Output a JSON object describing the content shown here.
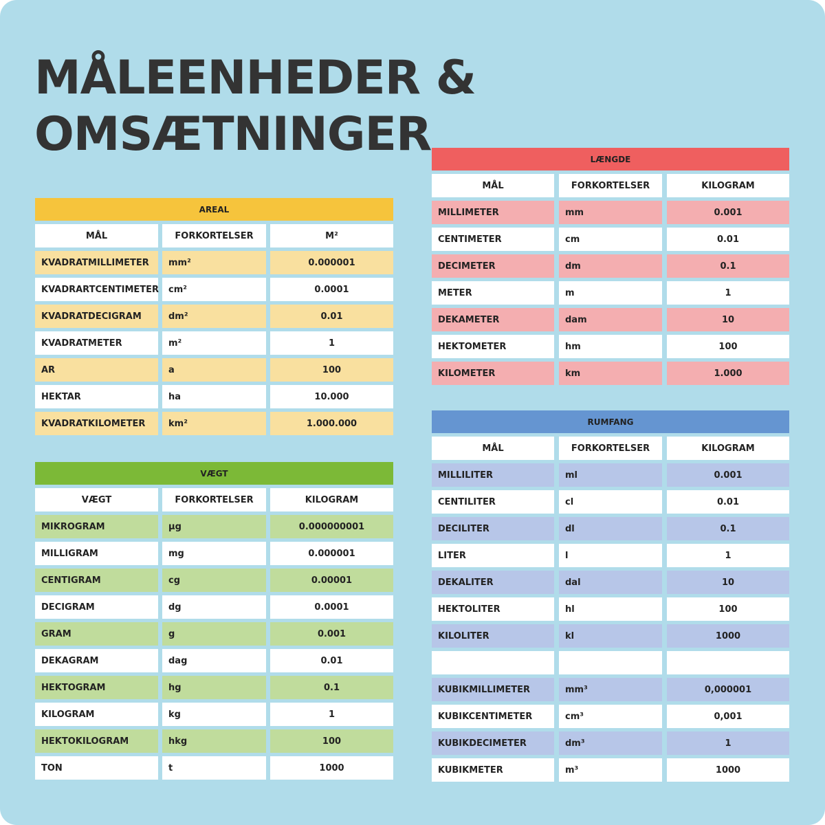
{
  "title_lines": [
    "MÅLEENHEDER &",
    "OMSÆTNINGER"
  ],
  "areal": {
    "title": "AREAL",
    "headers": [
      "MÅL",
      "FORKORTELSER",
      "M²"
    ],
    "rows": [
      [
        "KVADRATMILLIMETER",
        "mm²",
        "0.000001"
      ],
      [
        "KVADRARTCENTIMETER",
        "cm²",
        "0.0001"
      ],
      [
        "KVADRATDECIGRAM",
        "dm²",
        "0.01"
      ],
      [
        "KVADRATMETER",
        "m²",
        "1"
      ],
      [
        "AR",
        "a",
        "100"
      ],
      [
        "HEKTAR",
        "ha",
        "10.000"
      ],
      [
        "KVADRATKILOMETER",
        "km²",
        "1.000.000"
      ]
    ]
  },
  "vaegt": {
    "title": "VÆGT",
    "headers": [
      "VÆGT",
      "FORKORTELSER",
      "KILOGRAM"
    ],
    "rows": [
      [
        "MIKROGRAM",
        "µg",
        "0.000000001"
      ],
      [
        "MILLIGRAM",
        "mg",
        "0.000001"
      ],
      [
        "CENTIGRAM",
        "cg",
        "0.00001"
      ],
      [
        "DECIGRAM",
        "dg",
        "0.0001"
      ],
      [
        "GRAM",
        "g",
        "0.001"
      ],
      [
        "DEKAGRAM",
        "dag",
        "0.01"
      ],
      [
        "HEKTOGRAM",
        "hg",
        "0.1"
      ],
      [
        "KILOGRAM",
        "kg",
        "1"
      ],
      [
        "HEKTOKILOGRAM",
        "hkg",
        "100"
      ],
      [
        "TON",
        "t",
        "1000"
      ]
    ]
  },
  "laengde": {
    "title": "LÆNGDE",
    "headers": [
      "MÅL",
      "FORKORTELSER",
      "KILOGRAM"
    ],
    "rows": [
      [
        "MILLIMETER",
        "mm",
        "0.001"
      ],
      [
        "CENTIMETER",
        "cm",
        "0.01"
      ],
      [
        "DECIMETER",
        "dm",
        "0.1"
      ],
      [
        "METER",
        "m",
        "1"
      ],
      [
        "DEKAMETER",
        "dam",
        "10"
      ],
      [
        "HEKTOMETER",
        "hm",
        "100"
      ],
      [
        "KILOMETER",
        "km",
        "1.000"
      ]
    ]
  },
  "rumfang": {
    "title": "RUMFANG",
    "headers": [
      "MÅL",
      "FORKORTELSER",
      "KILOGRAM"
    ],
    "groups": [
      [
        [
          "MILLILITER",
          "ml",
          "0.001"
        ],
        [
          "CENTILITER",
          "cl",
          "0.01"
        ],
        [
          "DECILITER",
          "dl",
          "0.1"
        ],
        [
          "LITER",
          "l",
          "1"
        ],
        [
          "DEKALITER",
          "dal",
          "10"
        ],
        [
          "HEKTOLITER",
          "hl",
          "100"
        ],
        [
          "KILOLITER",
          "kl",
          "1000"
        ]
      ],
      [
        [
          "KUBIKMILLIMETER",
          "mm³",
          "0,000001"
        ],
        [
          "KUBIKCENTIMETER",
          "cm³",
          "0,001"
        ],
        [
          "KUBIKDECIMETER",
          "dm³",
          "1"
        ],
        [
          "KUBIKMETER",
          "m³",
          "1000"
        ]
      ]
    ]
  }
}
